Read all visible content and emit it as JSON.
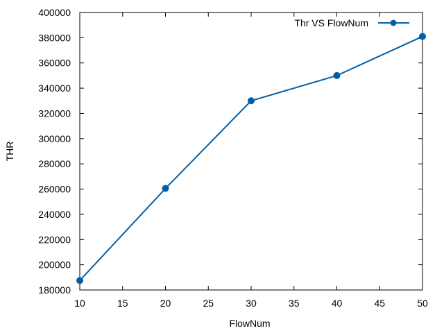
{
  "chart_data": {
    "type": "line",
    "xlabel": "FlowNum",
    "ylabel": "THR",
    "xlim": [
      10,
      50
    ],
    "ylim": [
      180000,
      400000
    ],
    "x_ticks": [
      10,
      15,
      20,
      25,
      30,
      35,
      40,
      45,
      50
    ],
    "y_ticks": [
      180000,
      200000,
      220000,
      240000,
      260000,
      280000,
      300000,
      320000,
      340000,
      360000,
      380000,
      400000
    ],
    "grid": false,
    "legend_position": "top-right",
    "series": [
      {
        "name": "Thr VS FlowNum",
        "color": "#005fa8",
        "marker": "circle",
        "x": [
          10,
          20,
          30,
          40,
          50
        ],
        "y": [
          187500,
          260500,
          330000,
          350000,
          381000
        ]
      }
    ]
  }
}
